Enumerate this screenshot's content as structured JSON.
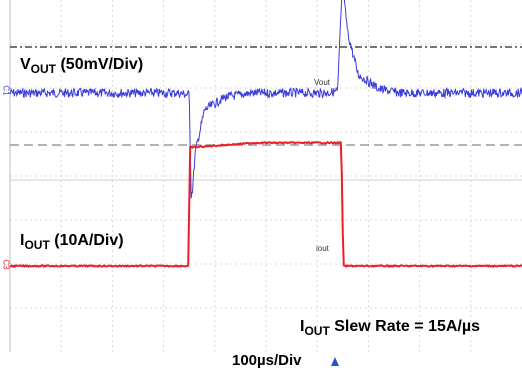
{
  "chart_data": {
    "type": "line",
    "x_unit": "µs",
    "xlim": [
      0,
      1000
    ],
    "grid": true,
    "timebase": "100µs/Div",
    "series": [
      {
        "name": "VOUT",
        "scale": "50mV/Div",
        "color": "#3b3bdc",
        "channel_marker": "C1",
        "waveform_label": "Vout",
        "points": [
          [
            0,
            0
          ],
          [
            325,
            0
          ],
          [
            350,
            -2
          ],
          [
            354,
            -120
          ],
          [
            356,
            -117
          ],
          [
            362,
            -70
          ],
          [
            380,
            -20
          ],
          [
            420,
            -5
          ],
          [
            470,
            0
          ],
          [
            615,
            0
          ],
          [
            640,
            2
          ],
          [
            648,
            115
          ],
          [
            652,
            112
          ],
          [
            660,
            70
          ],
          [
            680,
            22
          ],
          [
            720,
            5
          ],
          [
            760,
            0
          ],
          [
            1000,
            0
          ]
        ]
      },
      {
        "name": "IOUT",
        "scale": "10A/Div",
        "color": "#e8202a",
        "channel_marker": "C3",
        "waveform_label": "iout",
        "points": [
          [
            0,
            0
          ],
          [
            349,
            0
          ],
          [
            351,
            27
          ],
          [
            360,
            27
          ],
          [
            480,
            28
          ],
          [
            620,
            28
          ],
          [
            647,
            28
          ],
          [
            651,
            0
          ],
          [
            1000,
            0
          ]
        ]
      }
    ],
    "annotations": [
      {
        "text": "IOUT Slew Rate = 15A/µs"
      }
    ]
  },
  "labels": {
    "vout_main": "V",
    "vout_sub": "OUT",
    "vout_scale": " (50mV/Div)",
    "iout_main": "I",
    "iout_sub": "OUT",
    "iout_scale": " (10A/Div)",
    "slew_main": "I",
    "slew_sub": "OUT",
    "slew_rest": " Slew Rate = 15A/µs",
    "timebase": "100µs/Div",
    "vout_wave": "Vout",
    "iout_wave": "iout",
    "c1": "C1",
    "c3": "C3"
  }
}
